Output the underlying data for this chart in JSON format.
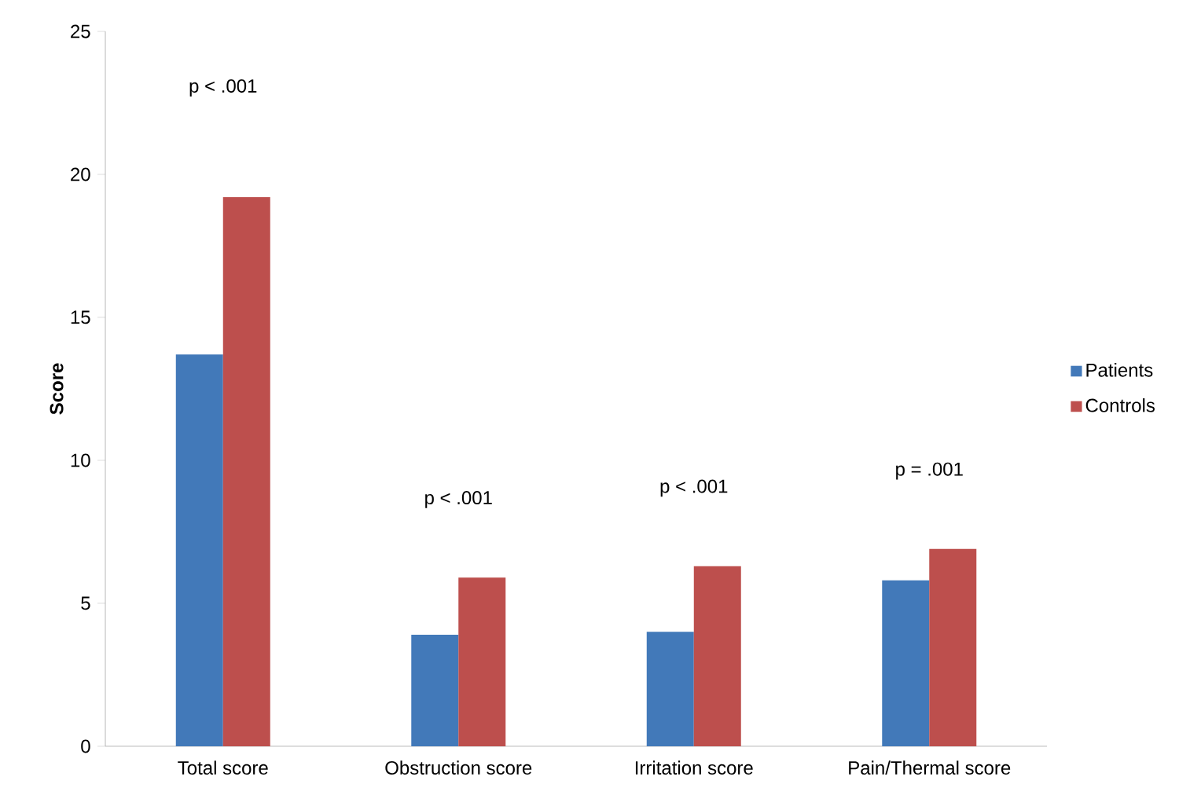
{
  "chart_data": {
    "type": "bar",
    "ylabel": "Score",
    "categories": [
      "Total score",
      "Obstruction score",
      "Irritation score",
      "Pain/Thermal score"
    ],
    "series": [
      {
        "name": "Patients",
        "color": "#4279b9",
        "values": [
          13.7,
          3.9,
          4.0,
          5.8
        ]
      },
      {
        "name": "Controls",
        "color": "#bd4f4d",
        "values": [
          19.2,
          5.9,
          6.3,
          6.9
        ]
      }
    ],
    "ylim": [
      0,
      25
    ],
    "yticks": [
      0,
      5,
      10,
      15,
      20,
      25
    ],
    "grid": false,
    "legend": "right",
    "annotations": [
      "p < .001",
      "p < .001",
      "p < .001",
      "p = .001"
    ]
  }
}
